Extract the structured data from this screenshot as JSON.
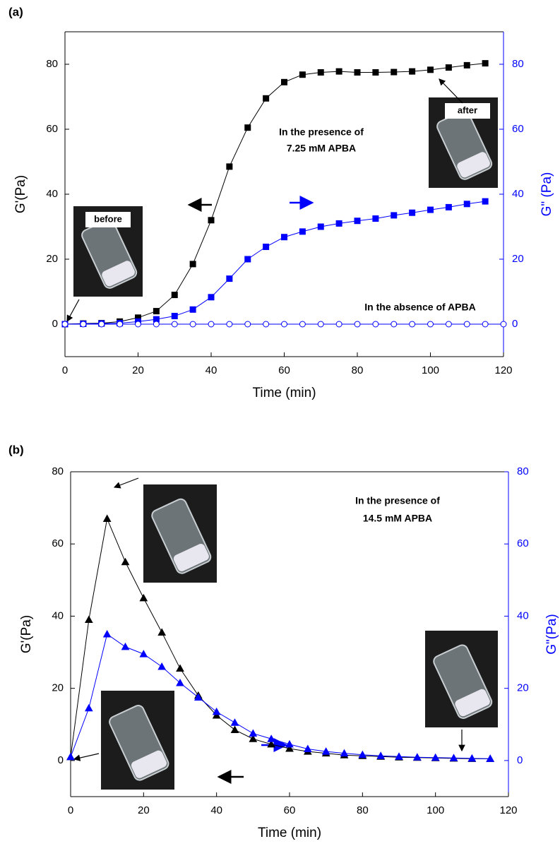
{
  "chart_data": [
    {
      "type": "line",
      "panel_label": "(a)",
      "xlabel": "Time (min)",
      "ylabel": "G'(Pa)",
      "y2label": "G\" (Pa)",
      "xlim": [
        0,
        120
      ],
      "xticks": [
        0,
        20,
        40,
        60,
        80,
        100,
        120
      ],
      "ylim": [
        -10,
        90
      ],
      "yticks": [
        0,
        20,
        40,
        60,
        80
      ],
      "y2lim": [
        -10,
        90
      ],
      "y2ticks": [
        0,
        20,
        40,
        60,
        80
      ],
      "y2color": "#0000ff",
      "annotations": [
        "In the presence of",
        "7.25 mM APBA",
        "In the absence of APBA"
      ],
      "photo_labels": [
        "before",
        "after"
      ],
      "series": [
        {
          "color": "#000000",
          "marker": "square",
          "open": false,
          "x": [
            0,
            5,
            10,
            15,
            20,
            25,
            30,
            35,
            40,
            45,
            50,
            55,
            60,
            65,
            70,
            75,
            80,
            85,
            90,
            95,
            100,
            105,
            110,
            115
          ],
          "values": [
            0,
            0.2,
            0.3,
            0.8,
            2,
            4,
            9,
            18.5,
            32,
            48.5,
            60.5,
            69.5,
            74.5,
            76.8,
            77.5,
            77.8,
            77.5,
            77.5,
            77.6,
            77.8,
            78.3,
            79,
            79.7,
            80.3
          ]
        },
        {
          "color": "#0000ff",
          "marker": "square",
          "open": false,
          "axis": "y2",
          "x": [
            0,
            5,
            10,
            15,
            20,
            25,
            30,
            35,
            40,
            45,
            50,
            55,
            60,
            65,
            70,
            75,
            80,
            85,
            90,
            95,
            100,
            105,
            110,
            115
          ],
          "values": [
            0,
            0.1,
            0.2,
            0.3,
            0.8,
            1.5,
            2.5,
            4.5,
            8.3,
            14,
            20,
            23.8,
            26.8,
            28.5,
            30,
            31,
            31.8,
            32.5,
            33.5,
            34.3,
            35.2,
            36,
            37,
            37.8
          ]
        },
        {
          "color": "#0000ff",
          "marker": "circle",
          "open": true,
          "x": [
            0,
            5,
            10,
            15,
            20,
            25,
            30,
            35,
            40,
            45,
            50,
            55,
            60,
            65,
            70,
            75,
            80,
            85,
            90,
            95,
            100,
            105,
            110,
            115,
            120
          ],
          "values": [
            0,
            0,
            0,
            0,
            0,
            0,
            0,
            0,
            0,
            0,
            0,
            0,
            0,
            0,
            0,
            0,
            0,
            0,
            0,
            0,
            0,
            0,
            0,
            0,
            0
          ]
        }
      ]
    },
    {
      "type": "line",
      "panel_label": "(b)",
      "xlabel": "Time (min)",
      "ylabel": "G'(Pa)",
      "y2label": "G\"(Pa)",
      "xlim": [
        0,
        120
      ],
      "xticks": [
        0,
        20,
        40,
        60,
        80,
        100,
        120
      ],
      "ylim": [
        -10,
        80
      ],
      "yticks": [
        0,
        20,
        40,
        60,
        80
      ],
      "y2lim": [
        -10,
        80
      ],
      "y2ticks": [
        0,
        20,
        40,
        60,
        80
      ],
      "y2color": "#0000ff",
      "annotations": [
        "In the presence of",
        "14.5 mM APBA"
      ],
      "series": [
        {
          "color": "#000000",
          "marker": "triangle",
          "open": false,
          "x": [
            0,
            5,
            10,
            15,
            20,
            25,
            30,
            35,
            40,
            45,
            50,
            55,
            60,
            65,
            70,
            75,
            80,
            85,
            90,
            95,
            100,
            105,
            110,
            115
          ],
          "values": [
            1,
            39,
            67,
            55,
            45,
            35.5,
            25.5,
            18,
            12.5,
            8.5,
            6,
            4.5,
            3.3,
            2.5,
            2,
            1.5,
            1.3,
            1.1,
            0.9,
            0.8,
            0.7,
            0.6,
            0.5,
            0.5
          ]
        },
        {
          "color": "#0000ff",
          "marker": "triangle",
          "open": false,
          "axis": "y2",
          "x": [
            0,
            5,
            10,
            15,
            20,
            25,
            30,
            35,
            40,
            45,
            50,
            55,
            60,
            65,
            70,
            75,
            80,
            85,
            90,
            95,
            100,
            105,
            110,
            115
          ],
          "values": [
            1,
            14.5,
            35,
            31.5,
            29.5,
            26,
            21.5,
            17.5,
            13.5,
            10.5,
            7.5,
            6,
            4.5,
            3.2,
            2.5,
            2,
            1.6,
            1.3,
            1.1,
            0.9,
            0.8,
            0.7,
            0.6,
            0.5
          ]
        }
      ]
    }
  ]
}
